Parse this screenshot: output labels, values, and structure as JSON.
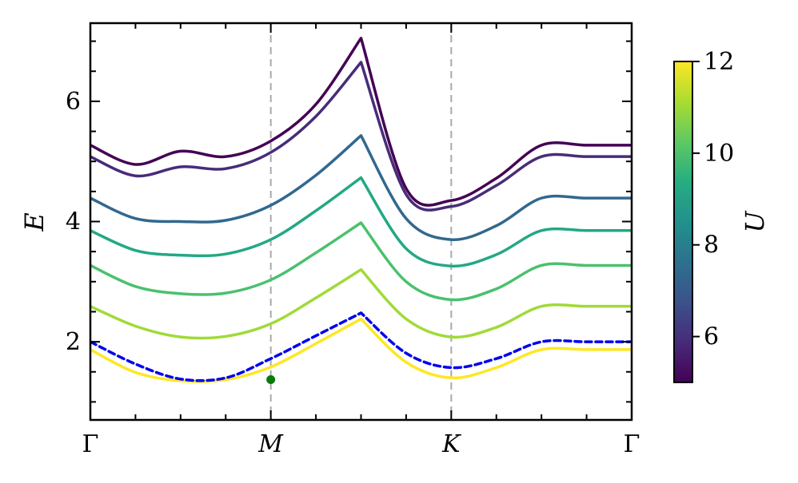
{
  "chart_data": {
    "type": "line",
    "xlabel": "",
    "ylabel": "E",
    "ylim": [
      0.7,
      7.3
    ],
    "y_ticks": [
      2,
      4,
      6
    ],
    "y_tick_labels": [
      "2",
      "4",
      "6"
    ],
    "x_ticks": [
      0,
      1,
      2,
      3
    ],
    "x_tick_labels": [
      "Γ",
      "M",
      "K",
      "Γ"
    ],
    "xlim": [
      0,
      3
    ],
    "x": [
      0,
      0.25,
      0.5,
      0.75,
      1.0,
      1.25,
      1.5,
      1.75,
      2.0,
      2.25,
      2.5,
      2.75,
      3.0
    ],
    "vertical_lines": [
      1,
      2
    ],
    "colorbar": {
      "label": "U",
      "range": [
        5,
        12
      ],
      "ticks": [
        6,
        8,
        10,
        12
      ],
      "tick_labels": [
        "6",
        "8",
        "10",
        "12"
      ],
      "colormap": [
        "#440154",
        "#3b528b",
        "#21918c",
        "#5ec962",
        "#fde725"
      ]
    },
    "series": [
      {
        "color": "#440154",
        "values": [
          5.27,
          4.95,
          5.17,
          5.08,
          5.34,
          5.95,
          7.05,
          4.55,
          4.35,
          4.72,
          5.27,
          5.27,
          5.27
        ]
      },
      {
        "color": "#472c7a",
        "values": [
          5.08,
          4.76,
          4.91,
          4.88,
          5.15,
          5.75,
          6.65,
          4.45,
          4.25,
          4.6,
          5.08,
          5.08,
          5.08
        ]
      },
      {
        "color": "#31688e",
        "values": [
          4.39,
          4.05,
          4.0,
          4.02,
          4.27,
          4.77,
          5.43,
          4.05,
          3.7,
          3.93,
          4.39,
          4.39,
          4.39
        ]
      },
      {
        "color": "#23a884",
        "values": [
          3.85,
          3.52,
          3.44,
          3.46,
          3.7,
          4.18,
          4.73,
          3.55,
          3.26,
          3.45,
          3.85,
          3.85,
          3.85
        ]
      },
      {
        "color": "#4ac16d",
        "values": [
          3.27,
          2.92,
          2.8,
          2.81,
          3.03,
          3.48,
          3.98,
          3.0,
          2.7,
          2.88,
          3.27,
          3.27,
          3.27
        ]
      },
      {
        "color": "#a0da39",
        "values": [
          2.59,
          2.26,
          2.08,
          2.09,
          2.3,
          2.73,
          3.2,
          2.38,
          2.08,
          2.24,
          2.59,
          2.59,
          2.59
        ]
      },
      {
        "color": "#fde725",
        "values": [
          1.87,
          1.49,
          1.35,
          1.37,
          1.58,
          1.97,
          2.38,
          1.66,
          1.4,
          1.57,
          1.87,
          1.87,
          1.87
        ]
      },
      {
        "color": "#0000ee",
        "dashed": true,
        "values": [
          2.0,
          1.63,
          1.38,
          1.4,
          1.72,
          2.1,
          2.48,
          1.81,
          1.57,
          1.72,
          2.0,
          2.0,
          2.0
        ]
      }
    ],
    "marker": {
      "x": 1.0,
      "y": 1.37,
      "color": "#0a7a0a"
    }
  }
}
